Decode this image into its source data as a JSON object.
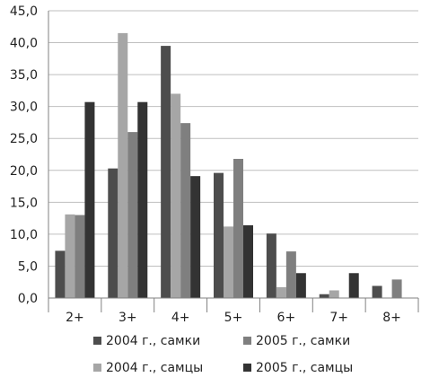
{
  "chart_data": {
    "type": "bar",
    "categories": [
      "2+",
      "3+",
      "4+",
      "5+",
      "6+",
      "7+",
      "8+"
    ],
    "series": [
      {
        "name": "2004 г.,  самки",
        "color": "#4d4d4d",
        "values": [
          7.4,
          20.3,
          39.5,
          19.6,
          10.1,
          0.6,
          1.9
        ]
      },
      {
        "name": "2004 г.,  самцы",
        "color": "#a6a6a6",
        "values": [
          13.1,
          41.5,
          32.0,
          11.2,
          1.7,
          1.2,
          0.0
        ]
      },
      {
        "name": "2005 г.,  самки",
        "color": "#7f7f7f",
        "values": [
          13.0,
          26.0,
          27.4,
          21.8,
          7.3,
          0.0,
          2.9
        ]
      },
      {
        "name": "2005 г.,  самцы",
        "color": "#333333",
        "values": [
          30.7,
          30.7,
          19.1,
          11.4,
          3.9,
          3.9,
          0.0
        ]
      }
    ],
    "yticks": [
      "0,0",
      "5,0",
      "10,0",
      "15,0",
      "20,0",
      "25,0",
      "30,0",
      "35,0",
      "40,0",
      "45,0"
    ],
    "ylim": [
      0,
      45
    ],
    "grid": true,
    "legend_position": "bottom"
  }
}
